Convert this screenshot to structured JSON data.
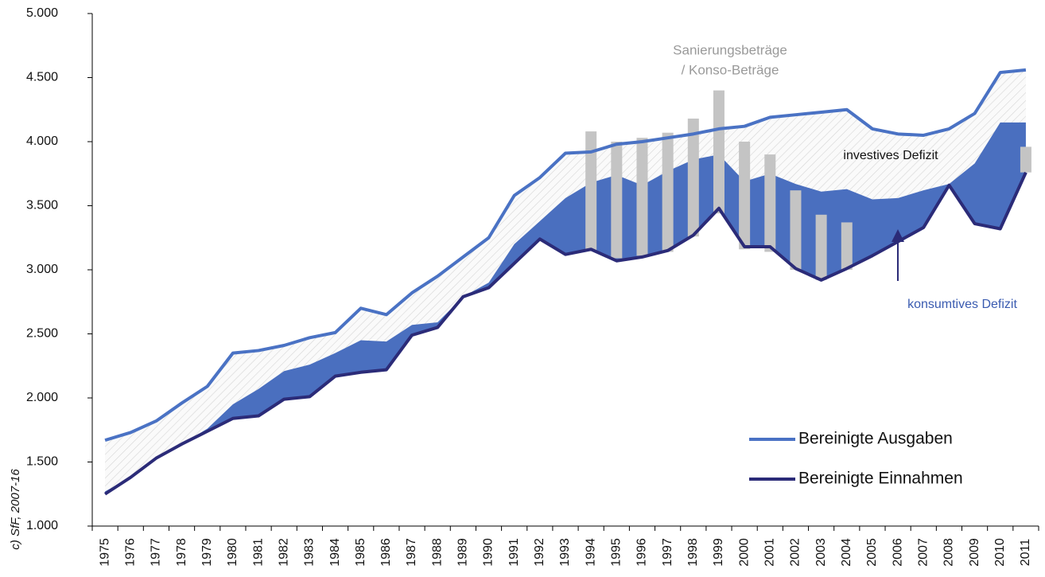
{
  "chart_data": {
    "type": "line",
    "source": "c) SfF, 2007-16",
    "categories": [
      "1975",
      "1976",
      "1977",
      "1978",
      "1979",
      "1980",
      "1981",
      "1982",
      "1983",
      "1984",
      "1985",
      "1986",
      "1987",
      "1988",
      "1989",
      "1990",
      "1991",
      "1992",
      "1993",
      "1994",
      "1995",
      "1996",
      "1997",
      "1998",
      "1999",
      "2000",
      "2001",
      "2002",
      "2003",
      "2004",
      "2005",
      "2006",
      "2007",
      "2008",
      "2009",
      "2010",
      "2011"
    ],
    "series": [
      {
        "name": "Bereinigte Ausgaben",
        "color": "#4a72c4",
        "values": [
          1670,
          1730,
          1820,
          1960,
          2090,
          2350,
          2370,
          2410,
          2470,
          2510,
          2700,
          2650,
          2820,
          2950,
          3100,
          3250,
          3580,
          3720,
          3910,
          3920,
          3980,
          4000,
          4030,
          4060,
          4100,
          4120,
          4190,
          4210,
          4230,
          4250,
          4100,
          4060,
          4050,
          4100,
          4220,
          4540,
          4560
        ]
      },
      {
        "name": "Bereinigte Einnahmen",
        "color": "#2b2b78",
        "values": [
          1250,
          1380,
          1530,
          1640,
          1740,
          1840,
          1860,
          1990,
          2010,
          2170,
          2200,
          2220,
          2490,
          2550,
          2790,
          2860,
          3050,
          3240,
          3120,
          3160,
          3070,
          3100,
          3150,
          3270,
          3480,
          3180,
          3180,
          3010,
          2920,
          3010,
          3110,
          3220,
          3330,
          3660,
          3360,
          3320,
          3760
        ]
      }
    ],
    "konsumtives_defizit": {
      "label": "konsumtives Defizit",
      "color": "#4a6fbf",
      "upper": [
        1270,
        1380,
        1530,
        1640,
        1760,
        1950,
        2070,
        2210,
        2260,
        2350,
        2450,
        2440,
        2570,
        2590,
        2790,
        2900,
        3200,
        3380,
        3560,
        3680,
        3740,
        3660,
        3770,
        3860,
        3900,
        3690,
        3750,
        3670,
        3610,
        3630,
        3550,
        3560,
        3620,
        3670,
        3830,
        4150,
        4150
      ]
    },
    "investives_defizit": {
      "label": "investives Defizit"
    },
    "bars": {
      "label": [
        "Sanierungsbeträge",
        "/ Konso-Beträge"
      ],
      "color": "#c4c4c4",
      "low": [
        null,
        null,
        null,
        null,
        null,
        null,
        null,
        null,
        null,
        null,
        null,
        null,
        null,
        null,
        null,
        null,
        null,
        null,
        null,
        3150,
        3090,
        3110,
        3140,
        3260,
        3440,
        3160,
        3140,
        3000,
        2920,
        3000,
        null,
        null,
        null,
        null,
        null,
        null,
        3760
      ],
      "high": [
        null,
        null,
        null,
        null,
        null,
        null,
        null,
        null,
        null,
        null,
        null,
        null,
        null,
        null,
        null,
        null,
        null,
        null,
        null,
        4080,
        4000,
        4030,
        4070,
        4180,
        4400,
        4000,
        3900,
        3620,
        3430,
        3370,
        null,
        null,
        null,
        null,
        null,
        null,
        3960
      ]
    },
    "ylim": [
      1000,
      5000
    ],
    "yticks": [
      {
        "value": 1000,
        "label": "1.000"
      },
      {
        "value": 1500,
        "label": "1.500"
      },
      {
        "value": 2000,
        "label": "2.000"
      },
      {
        "value": 2500,
        "label": "2.500"
      },
      {
        "value": 3000,
        "label": "3.000"
      },
      {
        "value": 3500,
        "label": "3.500"
      },
      {
        "value": 4000,
        "label": "4.000"
      },
      {
        "value": 4500,
        "label": "4.500"
      },
      {
        "value": 5000,
        "label": "5.000"
      }
    ],
    "legend": "lower right"
  }
}
